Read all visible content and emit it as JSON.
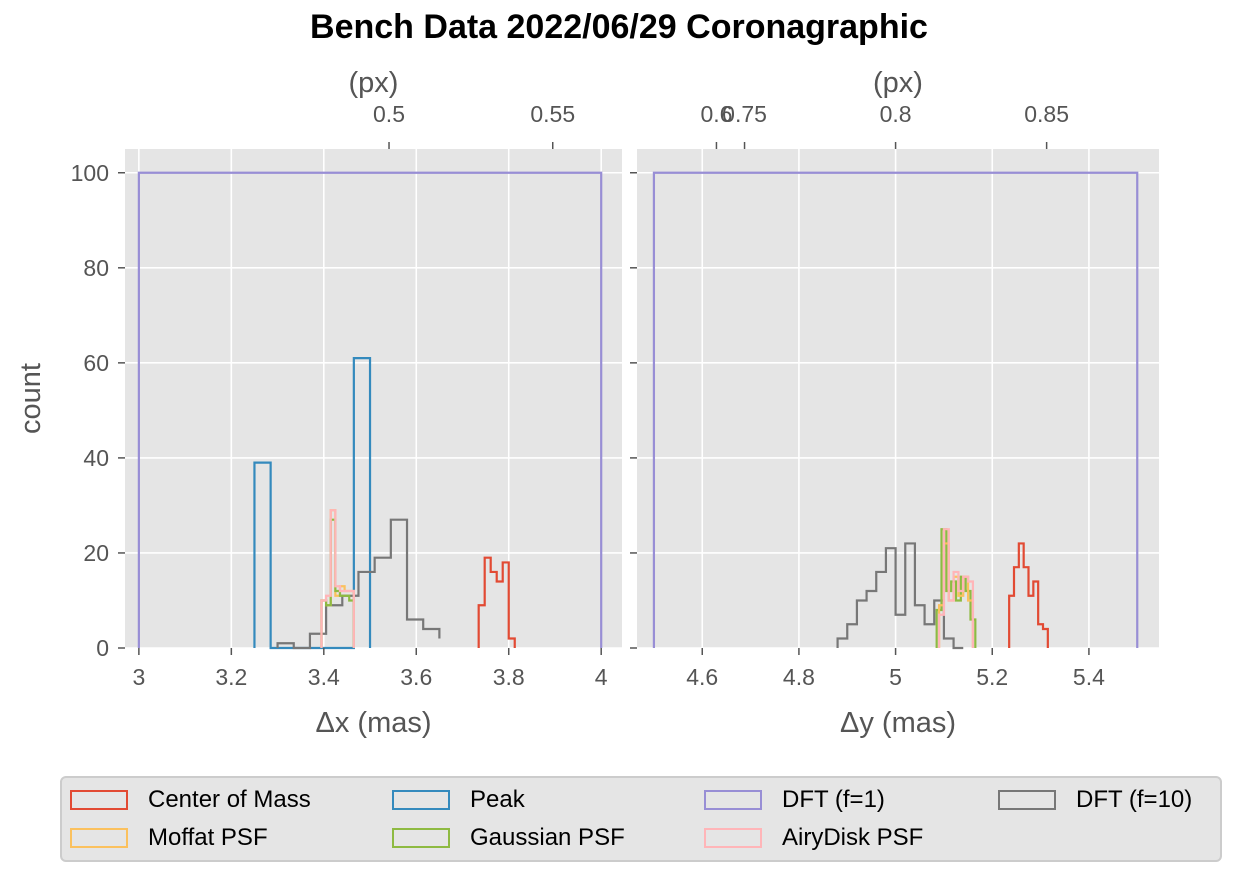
{
  "title": "Bench Data 2022/06/29 Coronagraphic",
  "colors": {
    "center_of_mass": "#e24a33",
    "peak": "#348abd",
    "dft_f1": "#988ed5",
    "dft_f10": "#777777",
    "moffat": "#fbc15e",
    "gaussian": "#8eba42",
    "airydisk": "#ffb5b8",
    "axes_bg": "#e5e5e5",
    "grid": "#ffffff"
  },
  "legend": [
    {
      "label": "Center of Mass",
      "color": "#e24a33"
    },
    {
      "label": "Peak",
      "color": "#348abd"
    },
    {
      "label": "DFT (f=1)",
      "color": "#988ed5"
    },
    {
      "label": "DFT (f=10)",
      "color": "#777777"
    },
    {
      "label": "Moffat PSF",
      "color": "#fbc15e"
    },
    {
      "label": "Gaussian PSF",
      "color": "#8eba42"
    },
    {
      "label": "AiryDisk PSF",
      "color": "#ffb5b8"
    }
  ],
  "chart_data": [
    {
      "type": "histogram",
      "xlabel": "Δx (mas)",
      "ylabel": "count",
      "secondary_xlabel": "(px)",
      "xlim": [
        2.97,
        4.045
      ],
      "ylim": [
        0,
        105
      ],
      "xticks": [
        3,
        3.2,
        3.4,
        3.6,
        3.8,
        4
      ],
      "xtick_labels": [
        "3",
        "3.2",
        "3.4",
        "3.6",
        "3.8",
        "4"
      ],
      "yticks": [
        0,
        20,
        40,
        60,
        80,
        100
      ],
      "ytick_labels": [
        "0",
        "20",
        "40",
        "60",
        "80",
        "100"
      ],
      "secondary_xticks": [
        0.5,
        0.55,
        0.6
      ],
      "secondary_xtick_labels": [
        "0.5",
        "0.55",
        "0.6"
      ],
      "px_per_mas": 0.1412,
      "grid": true,
      "series": [
        {
          "name": "DFT (f=1)",
          "color": "#988ed5",
          "edges": [
            3.0,
            4.0
          ],
          "counts": [
            100
          ]
        },
        {
          "name": "Peak",
          "color": "#348abd",
          "edges": [
            3.25,
            3.285,
            3.465,
            3.5
          ],
          "counts": [
            39,
            0,
            61
          ]
        },
        {
          "name": "DFT (f=10)",
          "color": "#777777",
          "edges": [
            3.3,
            3.335,
            3.37,
            3.405,
            3.44,
            3.475,
            3.51,
            3.545,
            3.58,
            3.615,
            3.65
          ],
          "counts": [
            1,
            0,
            3,
            9,
            11,
            16,
            19,
            27,
            6,
            4,
            2
          ]
        },
        {
          "name": "Moffat PSF",
          "color": "#fbc15e",
          "edges": [
            3.395,
            3.405,
            3.415,
            3.425,
            3.435,
            3.445,
            3.455,
            3.465
          ],
          "counts": [
            10,
            9,
            29,
            11,
            13,
            12,
            12
          ]
        },
        {
          "name": "Gaussian PSF",
          "color": "#8eba42",
          "edges": [
            3.395,
            3.405,
            3.415,
            3.425,
            3.435,
            3.445,
            3.455,
            3.465
          ],
          "counts": [
            10,
            9,
            27,
            12,
            11,
            11,
            10
          ]
        },
        {
          "name": "AiryDisk PSF",
          "color": "#ffb5b8",
          "edges": [
            3.395,
            3.405,
            3.415,
            3.425,
            3.435,
            3.445,
            3.455,
            3.465
          ],
          "counts": [
            10,
            11,
            29,
            13,
            12,
            12,
            12
          ]
        },
        {
          "name": "Center of Mass",
          "color": "#e24a33",
          "edges": [
            3.735,
            3.748,
            3.761,
            3.774,
            3.787,
            3.8,
            3.813
          ],
          "counts": [
            9,
            19,
            16,
            14,
            18,
            2
          ]
        }
      ]
    },
    {
      "type": "histogram",
      "xlabel": "Δy (mas)",
      "ylabel": "",
      "secondary_xlabel": "(px)",
      "xlim": [
        4.465,
        5.545
      ],
      "ylim": [
        0,
        105
      ],
      "xticks": [
        4.6,
        4.8,
        5,
        5.2,
        5.4
      ],
      "xtick_labels": [
        "4.6",
        "4.8",
        "5",
        "5.2",
        "5.4"
      ],
      "yticks": [
        0,
        20,
        40,
        60,
        80,
        100
      ],
      "ytick_labels": [
        "",
        "",
        "",
        "",
        "",
        ""
      ],
      "secondary_xticks": [
        0.75,
        0.8,
        0.85
      ],
      "secondary_xtick_labels": [
        "0.75",
        "0.8",
        "0.85"
      ],
      "px_per_mas": 0.16,
      "grid": true,
      "series": [
        {
          "name": "DFT (f=1)",
          "color": "#988ed5",
          "edges": [
            4.5,
            5.5
          ],
          "counts": [
            100
          ]
        },
        {
          "name": "DFT (f=10)",
          "color": "#777777",
          "edges": [
            4.88,
            4.9,
            4.92,
            4.94,
            4.96,
            4.98,
            5.0,
            5.02,
            5.04,
            5.06,
            5.08,
            5.1,
            5.12,
            5.14
          ],
          "counts": [
            2,
            5,
            10,
            12,
            16,
            21,
            7,
            22,
            9,
            5,
            10,
            2,
            0
          ]
        },
        {
          "name": "Gaussian PSF",
          "color": "#8eba42",
          "edges": [
            5.085,
            5.095,
            5.105,
            5.115,
            5.125,
            5.135,
            5.145,
            5.155,
            5.165
          ],
          "counts": [
            8,
            25,
            12,
            14,
            10,
            15,
            12,
            6
          ]
        },
        {
          "name": "Moffat PSF",
          "color": "#fbc15e",
          "edges": [
            5.09,
            5.1,
            5.11,
            5.12,
            5.13,
            5.14,
            5.15,
            5.16
          ],
          "counts": [
            9,
            22,
            10,
            15,
            11,
            15,
            10
          ]
        },
        {
          "name": "AiryDisk PSF",
          "color": "#ffb5b8",
          "edges": [
            5.09,
            5.1,
            5.11,
            5.12,
            5.13,
            5.14,
            5.15,
            5.16
          ],
          "counts": [
            7,
            25,
            10,
            16,
            12,
            15,
            14
          ]
        },
        {
          "name": "Center of Mass",
          "color": "#e24a33",
          "edges": [
            5.235,
            5.245,
            5.255,
            5.265,
            5.275,
            5.285,
            5.295,
            5.305,
            5.315
          ],
          "counts": [
            11,
            17,
            22,
            17,
            11,
            14,
            5,
            4
          ]
        }
      ]
    }
  ]
}
